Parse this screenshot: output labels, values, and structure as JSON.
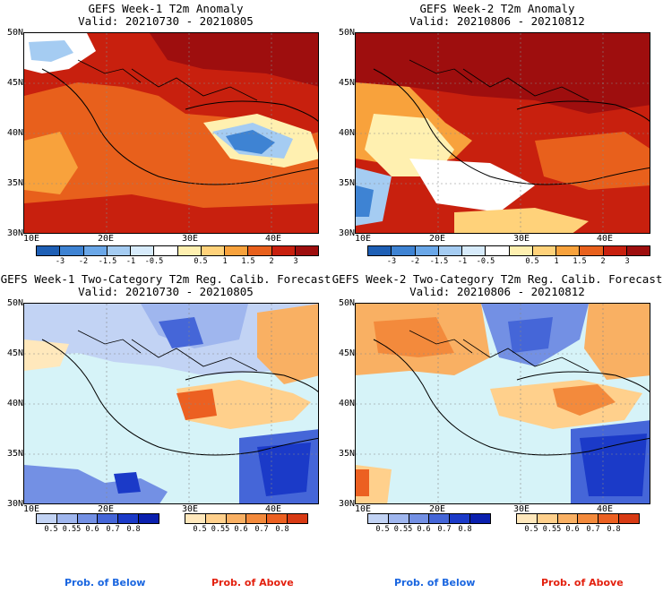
{
  "panels": [
    {
      "title": "GEFS Week-1 T2m Anomaly",
      "valid": "Valid: 20210730 - 20210805"
    },
    {
      "title": "GEFS Week-2 T2m Anomaly",
      "valid": "Valid: 20210806 - 20210812"
    },
    {
      "title": "GEFS Week-1 Two-Category T2m Reg. Calib. Forecast",
      "valid": "Valid: 20210730 - 20210805"
    },
    {
      "title": "GEFS Week-2 Two-Category T2m Reg. Calib. Forecast",
      "valid": "Valid: 20210806 - 20210812"
    }
  ],
  "axes": {
    "lat_labels": [
      "50N",
      "45N",
      "40N",
      "35N",
      "30N"
    ],
    "lon_labels": [
      "10E",
      "20E",
      "30E",
      "40E"
    ]
  },
  "anomaly_colorbar": {
    "labels": [
      "-3",
      "-2",
      "-1.5",
      "-1",
      "-0.5",
      "0.5",
      "1",
      "1.5",
      "2",
      "3"
    ],
    "colors": [
      "#1e5fb5",
      "#3e83d3",
      "#6aa7e8",
      "#a5ccf2",
      "#d7ebfb",
      "#ffffff",
      "#fff0b0",
      "#ffd27a",
      "#f8a23c",
      "#e8601c",
      "#c8200e",
      "#9e0e0e"
    ]
  },
  "prob_below_colorbar": {
    "labels": [
      "0.5",
      "0.55",
      "0.6",
      "0.7",
      "0.8"
    ],
    "colors": [
      "#c2d3f4",
      "#9fb6ee",
      "#7390e4",
      "#4566d8",
      "#1b3ac8",
      "#0a1fae"
    ]
  },
  "prob_above_colorbar": {
    "labels": [
      "0.5",
      "0.55",
      "0.6",
      "0.7",
      "0.8"
    ],
    "colors": [
      "#ffe8bc",
      "#ffd08c",
      "#f9b063",
      "#f38a3c",
      "#ec6021",
      "#d83a14"
    ]
  },
  "legend": {
    "below": "Prob. of Below",
    "above": "Prob. of Above",
    "below_color": "#1a66e0",
    "above_color": "#e3210f"
  },
  "colors": {
    "sea_light": "#d6f3f8",
    "coast": "#000000"
  }
}
